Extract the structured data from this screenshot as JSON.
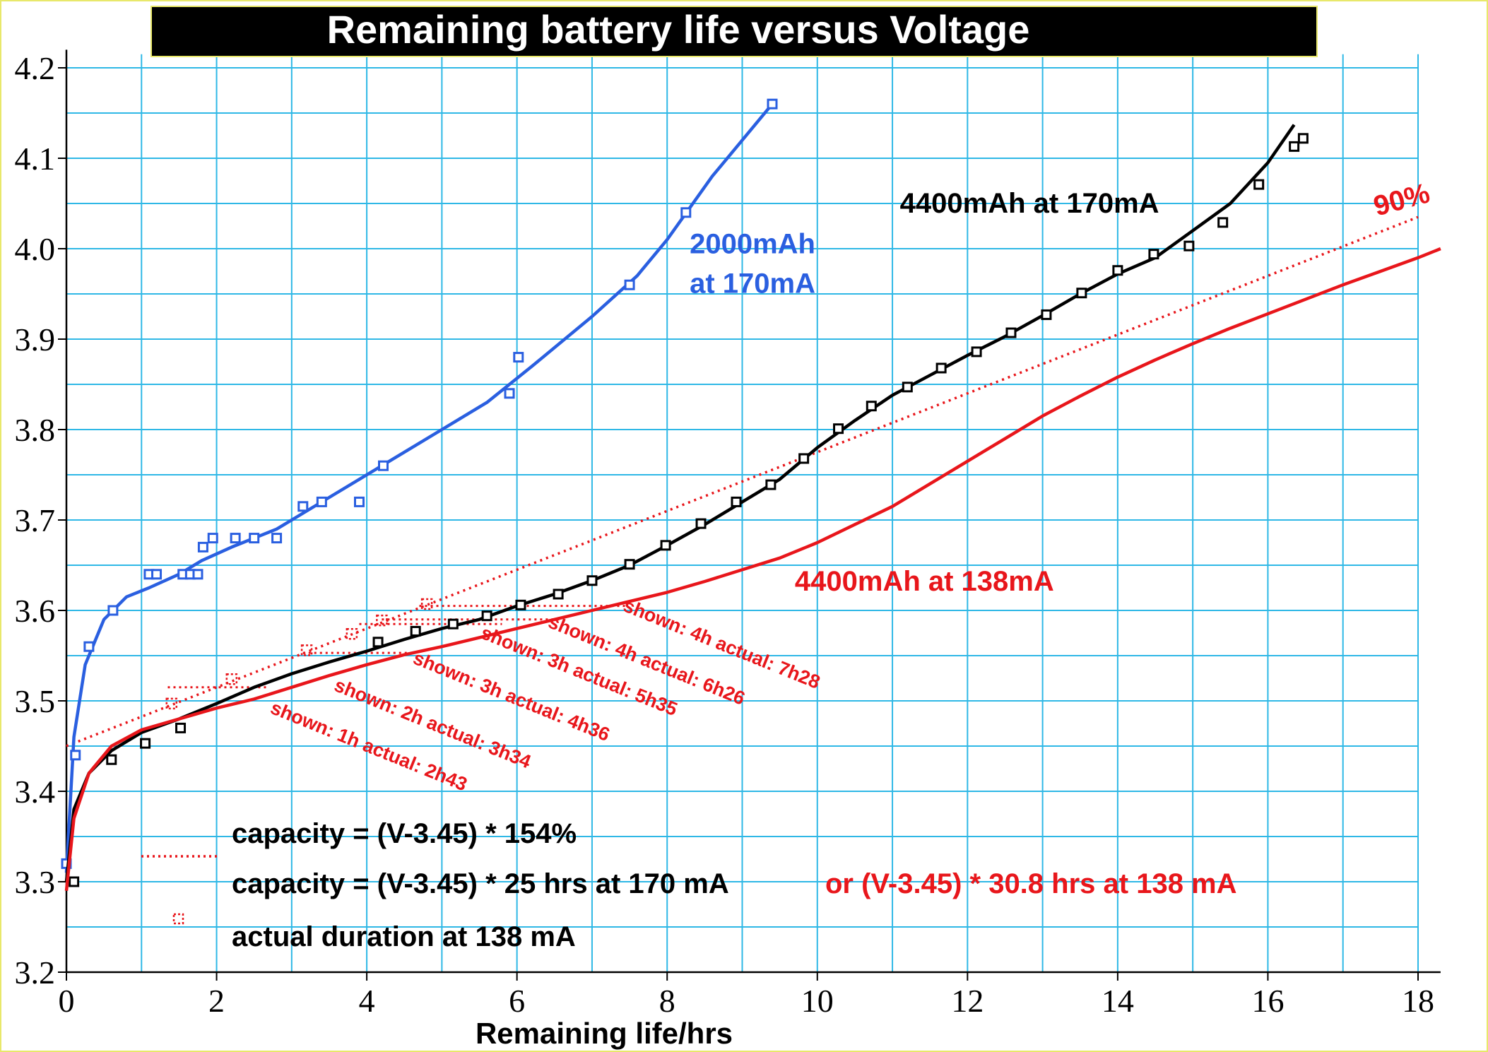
{
  "chart_data": {
    "type": "line",
    "title": "Remaining battery life versus Voltage",
    "xlabel": "Remaining life/hrs",
    "ylabel": "",
    "xlim": [
      0,
      18.3
    ],
    "ylim": [
      3.2,
      4.22
    ],
    "x_ticks": [
      "0",
      "2",
      "4",
      "6",
      "8",
      "10",
      "12",
      "14",
      "16",
      "18"
    ],
    "y_ticks": [
      "3.2",
      "3.3",
      "3.4",
      "3.5",
      "3.6",
      "3.7",
      "3.8",
      "3.9",
      "4.0",
      "4.1",
      "4.2"
    ],
    "grid": true,
    "colors": {
      "blue": "#2a5fe0",
      "black": "#000000",
      "red": "#e8161b",
      "grid": "#2fb8e6",
      "title_bg": "#000000"
    },
    "series": [
      {
        "name": "2000mAh at 170mA",
        "color": "#2a5fe0",
        "points": [
          [
            0.0,
            3.32
          ],
          [
            0.12,
            3.44
          ],
          [
            0.3,
            3.56
          ],
          [
            0.62,
            3.6
          ],
          [
            1.1,
            3.64
          ],
          [
            1.2,
            3.64
          ],
          [
            1.55,
            3.64
          ],
          [
            1.65,
            3.64
          ],
          [
            1.75,
            3.64
          ],
          [
            1.82,
            3.67
          ],
          [
            1.95,
            3.68
          ],
          [
            2.25,
            3.68
          ],
          [
            2.5,
            3.68
          ],
          [
            2.8,
            3.68
          ],
          [
            3.15,
            3.715
          ],
          [
            3.4,
            3.72
          ],
          [
            3.9,
            3.72
          ],
          [
            4.22,
            3.76
          ],
          [
            5.9,
            3.84
          ],
          [
            6.02,
            3.88
          ],
          [
            7.5,
            3.96
          ],
          [
            8.25,
            4.04
          ],
          [
            9.4,
            4.16
          ]
        ],
        "curve": [
          [
            0.0,
            3.31
          ],
          [
            0.1,
            3.46
          ],
          [
            0.25,
            3.54
          ],
          [
            0.5,
            3.59
          ],
          [
            0.8,
            3.615
          ],
          [
            1.1,
            3.625
          ],
          [
            1.5,
            3.64
          ],
          [
            1.8,
            3.655
          ],
          [
            2.2,
            3.67
          ],
          [
            2.8,
            3.69
          ],
          [
            3.5,
            3.725
          ],
          [
            4.2,
            3.76
          ],
          [
            5.0,
            3.8
          ],
          [
            5.6,
            3.83
          ],
          [
            6.2,
            3.87
          ],
          [
            7.0,
            3.925
          ],
          [
            7.6,
            3.97
          ],
          [
            8.0,
            4.01
          ],
          [
            8.6,
            4.08
          ],
          [
            9.0,
            4.12
          ],
          [
            9.4,
            4.16
          ]
        ]
      },
      {
        "name": "4400mAh at 170mA",
        "color": "#000000",
        "points": [
          [
            0.1,
            3.3
          ],
          [
            0.6,
            3.435
          ],
          [
            1.05,
            3.453
          ],
          [
            1.52,
            3.47
          ],
          [
            4.15,
            3.565
          ],
          [
            4.65,
            3.577
          ],
          [
            5.15,
            3.585
          ],
          [
            5.6,
            3.594
          ],
          [
            6.05,
            3.606
          ],
          [
            6.55,
            3.618
          ],
          [
            7.0,
            3.633
          ],
          [
            7.5,
            3.651
          ],
          [
            7.98,
            3.672
          ],
          [
            8.45,
            3.696
          ],
          [
            8.92,
            3.72
          ],
          [
            9.38,
            3.739
          ],
          [
            9.82,
            3.768
          ],
          [
            10.28,
            3.801
          ],
          [
            10.72,
            3.826
          ],
          [
            11.2,
            3.847
          ],
          [
            11.65,
            3.868
          ],
          [
            12.12,
            3.886
          ],
          [
            12.58,
            3.907
          ],
          [
            13.05,
            3.927
          ],
          [
            13.52,
            3.951
          ],
          [
            14.0,
            3.976
          ],
          [
            14.48,
            3.994
          ],
          [
            14.95,
            4.003
          ],
          [
            15.4,
            4.029
          ],
          [
            15.88,
            4.071
          ],
          [
            16.35,
            4.113
          ],
          [
            16.47,
            4.122
          ]
        ],
        "curve": [
          [
            0.0,
            3.3
          ],
          [
            0.1,
            3.38
          ],
          [
            0.3,
            3.42
          ],
          [
            0.6,
            3.445
          ],
          [
            1.0,
            3.465
          ],
          [
            1.5,
            3.48
          ],
          [
            2.0,
            3.497
          ],
          [
            2.5,
            3.515
          ],
          [
            3.0,
            3.53
          ],
          [
            3.5,
            3.543
          ],
          [
            4.0,
            3.555
          ],
          [
            4.5,
            3.568
          ],
          [
            5.0,
            3.58
          ],
          [
            5.5,
            3.59
          ],
          [
            6.0,
            3.605
          ],
          [
            6.5,
            3.618
          ],
          [
            7.0,
            3.633
          ],
          [
            7.5,
            3.65
          ],
          [
            8.0,
            3.672
          ],
          [
            8.5,
            3.695
          ],
          [
            9.0,
            3.72
          ],
          [
            9.5,
            3.745
          ],
          [
            10.0,
            3.78
          ],
          [
            10.5,
            3.81
          ],
          [
            11.0,
            3.838
          ],
          [
            11.5,
            3.86
          ],
          [
            12.0,
            3.882
          ],
          [
            12.5,
            3.903
          ],
          [
            13.0,
            3.926
          ],
          [
            13.5,
            3.95
          ],
          [
            14.0,
            3.972
          ],
          [
            14.5,
            3.99
          ],
          [
            15.0,
            4.02
          ],
          [
            15.5,
            4.05
          ],
          [
            16.0,
            4.095
          ],
          [
            16.35,
            4.137
          ]
        ]
      },
      {
        "name": "4400mAh at 138mA",
        "color": "#e8161b",
        "curve": [
          [
            0.0,
            3.29
          ],
          [
            0.1,
            3.37
          ],
          [
            0.3,
            3.42
          ],
          [
            0.6,
            3.45
          ],
          [
            1.0,
            3.468
          ],
          [
            1.5,
            3.48
          ],
          [
            2.0,
            3.492
          ],
          [
            2.5,
            3.502
          ],
          [
            3.0,
            3.515
          ],
          [
            3.5,
            3.528
          ],
          [
            4.0,
            3.54
          ],
          [
            4.5,
            3.551
          ],
          [
            5.0,
            3.56
          ],
          [
            5.5,
            3.57
          ],
          [
            6.0,
            3.58
          ],
          [
            6.5,
            3.59
          ],
          [
            7.0,
            3.6
          ],
          [
            7.5,
            3.61
          ],
          [
            8.0,
            3.62
          ],
          [
            8.5,
            3.632
          ],
          [
            9.0,
            3.645
          ],
          [
            9.5,
            3.658
          ],
          [
            10.0,
            3.675
          ],
          [
            10.5,
            3.695
          ],
          [
            11.0,
            3.715
          ],
          [
            11.5,
            3.74
          ],
          [
            12.0,
            3.765
          ],
          [
            12.5,
            3.79
          ],
          [
            13.0,
            3.815
          ],
          [
            13.5,
            3.837
          ],
          [
            14.0,
            3.858
          ],
          [
            14.5,
            3.877
          ],
          [
            15.0,
            3.895
          ],
          [
            15.5,
            3.912
          ],
          [
            16.0,
            3.928
          ],
          [
            16.5,
            3.944
          ],
          [
            17.0,
            3.96
          ],
          [
            17.5,
            3.975
          ],
          [
            18.0,
            3.99
          ],
          [
            18.3,
            4.0
          ]
        ]
      }
    ],
    "fit_line": {
      "name": "90%",
      "style": "dotted",
      "color": "#e8161b",
      "points": [
        [
          0.0,
          3.45
        ],
        [
          18.0,
          4.035
        ]
      ]
    },
    "actual_markers": {
      "color": "#e8161b",
      "points": [
        [
          1.4,
          3.497
        ],
        [
          2.2,
          3.524
        ],
        [
          3.2,
          3.556
        ],
        [
          3.8,
          3.574
        ],
        [
          4.2,
          3.589
        ],
        [
          4.8,
          3.607
        ]
      ]
    },
    "shown_lines": [
      {
        "y": 3.515,
        "x": [
          1.35,
          2.7
        ]
      },
      {
        "y": 3.553,
        "x": [
          3.15,
          4.6
        ]
      },
      {
        "y": 3.585,
        "x": [
          3.9,
          5.8
        ]
      },
      {
        "y": 3.59,
        "x": [
          4.2,
          6.6
        ]
      },
      {
        "y": 3.605,
        "x": [
          4.7,
          7.45
        ]
      }
    ],
    "annotations": [
      {
        "text": "shown: 1h actual: 2h43",
        "x": 2.7,
        "y": 3.487
      },
      {
        "text": "shown: 2h actual: 3h34",
        "x": 3.55,
        "y": 3.512
      },
      {
        "text": "shown: 3h actual: 4h36",
        "x": 4.6,
        "y": 3.542
      },
      {
        "text": "shown: 3h actual: 5h35",
        "x": 5.5,
        "y": 3.57
      },
      {
        "text": "shown: 4h actual: 6h26",
        "x": 6.4,
        "y": 3.582
      },
      {
        "text": "shown: 4h actual: 7h28",
        "x": 7.4,
        "y": 3.6
      }
    ],
    "series_labels": [
      {
        "lines": [
          "2000mAh",
          "at 170mA"
        ],
        "color": "#2a5fe0",
        "x": 8.3,
        "y": 3.995
      },
      {
        "lines": [
          "4400mAh at 170mA"
        ],
        "color": "#000000",
        "x": 11.1,
        "y": 4.04
      },
      {
        "lines": [
          "4400mAh at 138mA"
        ],
        "color": "#e8161b",
        "x": 9.7,
        "y": 3.622
      },
      {
        "lines": [
          "90%"
        ],
        "color": "#e8161b",
        "x": 17.45,
        "y": 4.036
      }
    ],
    "legend": {
      "placement": "bottom-center",
      "entries": [
        {
          "key": "fit",
          "text": "capacity = (V-3.45) * 154%",
          "color": "#000000",
          "symbol": "none"
        },
        {
          "key": "hours",
          "text": "capacity = (V-3.45) * 25 hrs at 170 mA",
          "color": "#000000",
          "symbol": "dotted-line"
        },
        {
          "key": "hours138",
          "text": "or (V-3.45) * 30.8 hrs at 138 mA",
          "color": "#e8161b",
          "symbol": "none"
        },
        {
          "key": "actual",
          "text": "actual duration at 138 mA",
          "color": "#000000",
          "symbol": "red-square"
        }
      ]
    }
  }
}
